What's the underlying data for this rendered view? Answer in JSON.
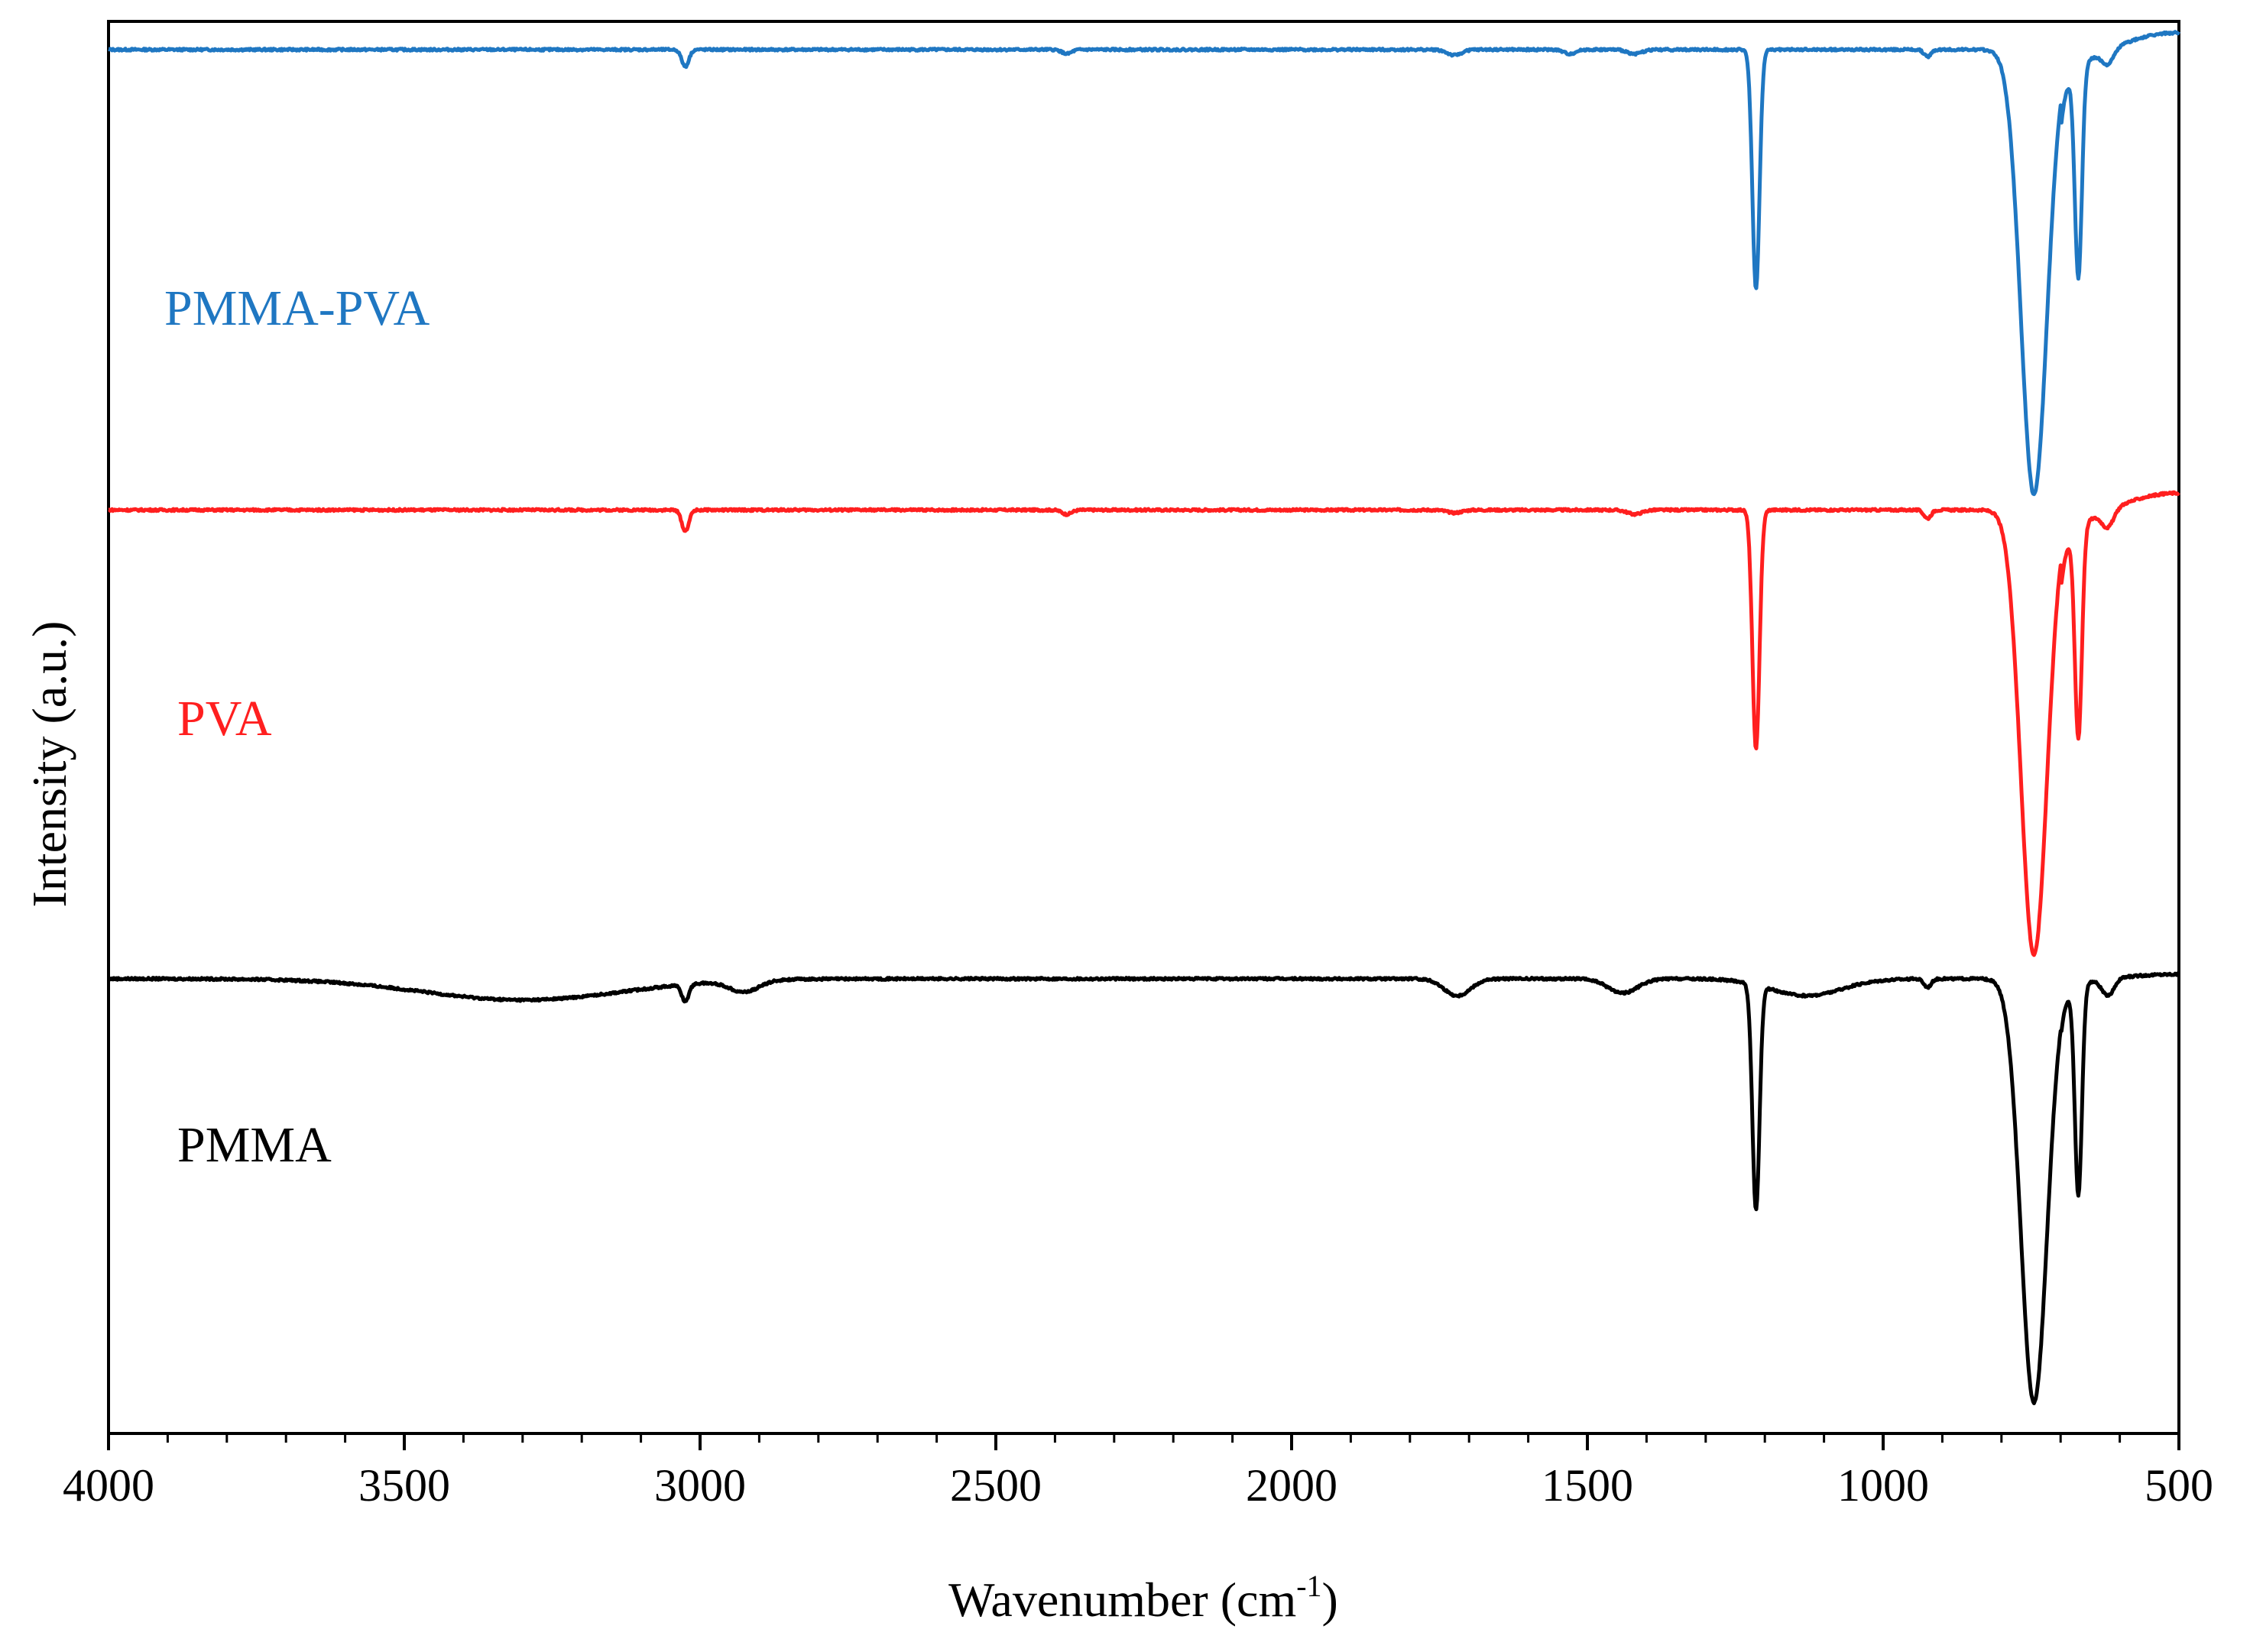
{
  "chart_data": {
    "type": "line",
    "title": "",
    "xlabel": "Wavenumber (cm",
    "xlabel_sup": "-1",
    "xlabel_close": ")",
    "ylabel": "Intensity (a.u.)",
    "xlim": [
      4000,
      500
    ],
    "x_reversed": true,
    "ylim": [
      0,
      1
    ],
    "yticks_visible": false,
    "grid": false,
    "x_ticks": [
      4000,
      3500,
      3000,
      2500,
      2000,
      1500,
      1000,
      500
    ],
    "x_tick_labels": [
      "4000",
      "3500",
      "3000",
      "2500",
      "2000",
      "1500",
      "1000",
      "500"
    ],
    "x_minor_step": 100,
    "series": [
      {
        "name": "PMMA-PVA",
        "label": "PMMA-PVA",
        "color": "#1f77c2",
        "baseline": 0.98,
        "broad": [],
        "peaks": [
          {
            "x": 3025,
            "depth": 0.012,
            "width": 6
          },
          {
            "x": 2380,
            "depth": 0.003,
            "width": 8
          },
          {
            "x": 1725,
            "depth": 0.004,
            "width": 12
          },
          {
            "x": 1530,
            "depth": 0.003,
            "width": 10
          },
          {
            "x": 1420,
            "depth": 0.003,
            "width": 12
          },
          {
            "x": 1215,
            "depth": 0.17,
            "width": 6
          },
          {
            "x": 925,
            "depth": 0.005,
            "width": 6
          },
          {
            "x": 745,
            "depth": 0.315,
            "width": 22
          },
          {
            "x": 670,
            "depth": 0.15,
            "width": 6
          },
          {
            "x": 620,
            "depth": 0.01,
            "width": 10
          }
        ],
        "rise": {
          "from": 700,
          "to": 500,
          "amount": 0.03
        }
      },
      {
        "name": "PVA",
        "label": "PVA",
        "color": "#ff1f1f",
        "baseline": 0.654,
        "broad": [],
        "peaks": [
          {
            "x": 3025,
            "depth": 0.015,
            "width": 6
          },
          {
            "x": 2380,
            "depth": 0.003,
            "width": 8
          },
          {
            "x": 1725,
            "depth": 0.002,
            "width": 12
          },
          {
            "x": 1420,
            "depth": 0.003,
            "width": 12
          },
          {
            "x": 1215,
            "depth": 0.17,
            "width": 6
          },
          {
            "x": 925,
            "depth": 0.006,
            "width": 6
          },
          {
            "x": 745,
            "depth": 0.315,
            "width": 22
          },
          {
            "x": 670,
            "depth": 0.15,
            "width": 6
          },
          {
            "x": 620,
            "depth": 0.012,
            "width": 10
          }
        ],
        "rise": {
          "from": 700,
          "to": 500,
          "amount": 0.03
        }
      },
      {
        "name": "PMMA",
        "label": "PMMA",
        "color": "#000000",
        "baseline": 0.322,
        "broad": [
          {
            "x": 3300,
            "depth": 0.015,
            "width": 170
          },
          {
            "x": 2925,
            "depth": 0.008,
            "width": 25
          },
          {
            "x": 1720,
            "depth": 0.012,
            "width": 22
          },
          {
            "x": 1440,
            "depth": 0.01,
            "width": 25
          },
          {
            "x": 1130,
            "depth": 0.012,
            "width": 60
          }
        ],
        "peaks": [
          {
            "x": 3025,
            "depth": 0.012,
            "width": 6
          },
          {
            "x": 1215,
            "depth": 0.16,
            "width": 6
          },
          {
            "x": 925,
            "depth": 0.006,
            "width": 6
          },
          {
            "x": 745,
            "depth": 0.3,
            "width": 22
          },
          {
            "x": 670,
            "depth": 0.15,
            "width": 6
          },
          {
            "x": 620,
            "depth": 0.012,
            "width": 10
          }
        ],
        "rise": {
          "from": 700,
          "to": 500,
          "amount": 0.008
        }
      }
    ]
  }
}
